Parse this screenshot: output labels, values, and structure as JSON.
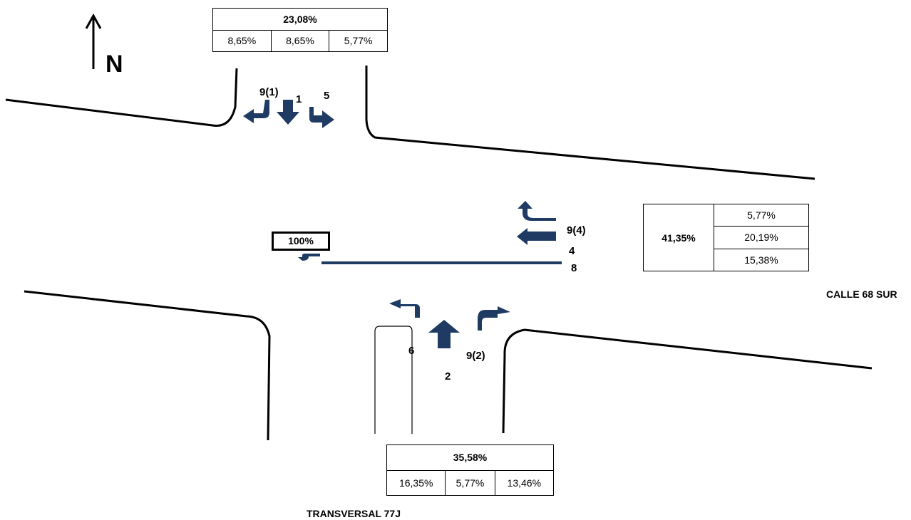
{
  "north_label": "N",
  "streets": {
    "east": "CALLE 68 SUR",
    "south": "TRANSVERSAL 77J"
  },
  "movement_labels": {
    "north_uturn": "9(1)",
    "north_through": "1",
    "north_left": "5",
    "east_uturn": "9(4)",
    "east_through": "4",
    "east_left": "8",
    "south_left": "6",
    "south_through": "2",
    "south_uturn": "9(2)"
  },
  "tables": {
    "north": {
      "total": "23,08%",
      "parts": [
        "8,65%",
        "8,65%",
        "5,77%"
      ]
    },
    "east": {
      "total": "41,35%",
      "parts": [
        "5,77%",
        "20,19%",
        "15,38%"
      ]
    },
    "south": {
      "total": "35,58%",
      "parts": [
        "16,35%",
        "5,77%",
        "13,46%"
      ]
    },
    "west": {
      "total": "100%"
    }
  },
  "colors": {
    "arrow": "#1f3b63",
    "road": "#000000",
    "divider": "#1f3b63"
  },
  "icons": {
    "north": "north-arrow-icon",
    "turn": "turn-arrow-icon",
    "straight": "straight-arrow-icon"
  }
}
